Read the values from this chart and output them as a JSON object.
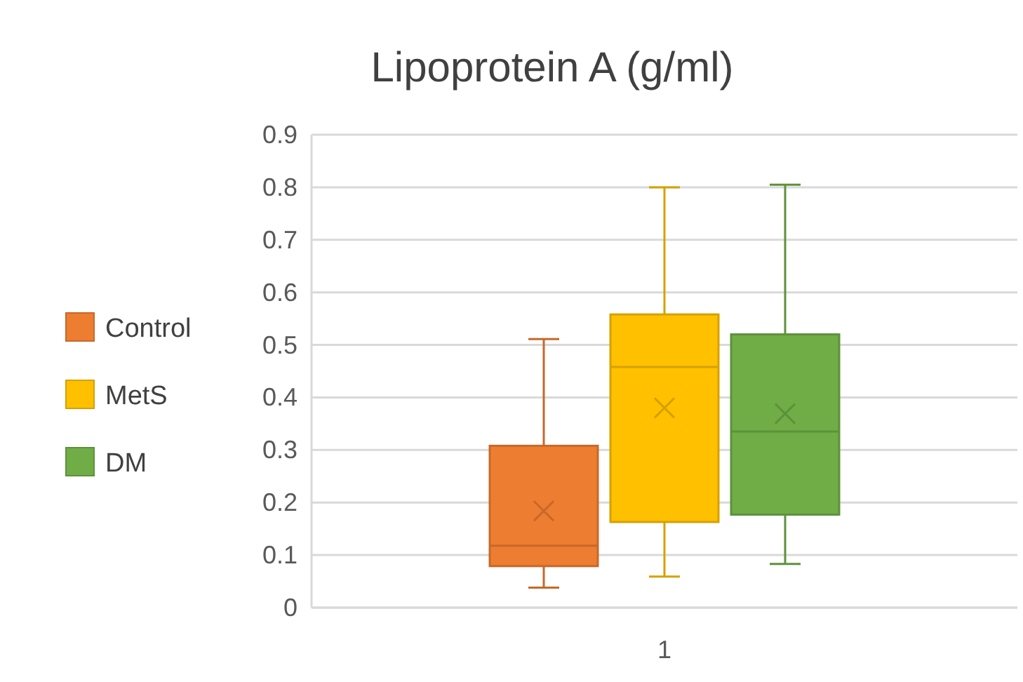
{
  "chart_data": {
    "type": "box",
    "title": "Lipoprotein A (g/ml)",
    "categories": [
      "1"
    ],
    "ylim": [
      0,
      0.9
    ],
    "yticks": [
      0,
      0.1,
      0.2,
      0.3,
      0.4,
      0.5,
      0.6,
      0.7,
      0.8,
      0.9
    ],
    "grid": "y",
    "legend": "left",
    "marker": "cross",
    "series": [
      {
        "name": "Control",
        "color": "#ed7d31",
        "boxes": [
          {
            "low": 0.038,
            "q1": 0.079,
            "median": 0.118,
            "q3": 0.308,
            "high": 0.511,
            "mean": 0.184
          }
        ]
      },
      {
        "name": "MetS",
        "color": "#ffc000",
        "boxes": [
          {
            "low": 0.059,
            "q1": 0.163,
            "median": 0.458,
            "q3": 0.558,
            "high": 0.8,
            "mean": 0.38
          }
        ]
      },
      {
        "name": "DM",
        "color": "#70ad47",
        "boxes": [
          {
            "low": 0.083,
            "q1": 0.177,
            "median": 0.335,
            "q3": 0.52,
            "high": 0.805,
            "mean": 0.369
          }
        ]
      }
    ]
  }
}
